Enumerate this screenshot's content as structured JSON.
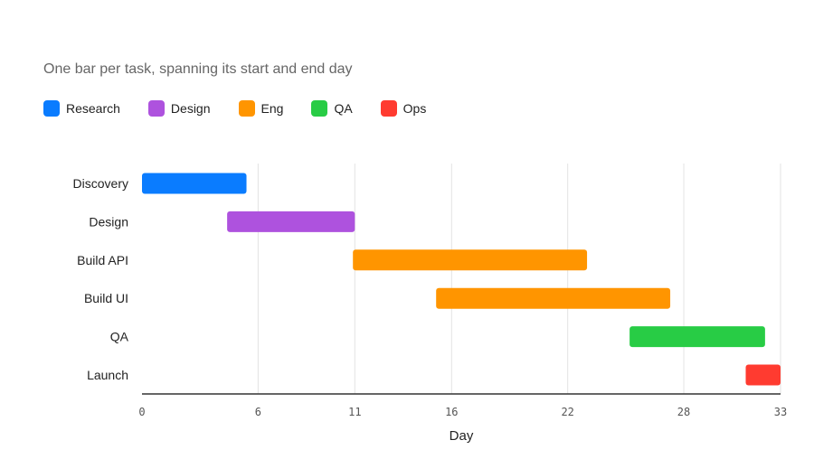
{
  "subtitle": "One bar per task, spanning its start and end day",
  "chart_data": {
    "type": "bar",
    "orientation": "horizontal-range",
    "title": "",
    "subtitle": "One bar per task, spanning its start and end day",
    "xlabel": "Day",
    "ylabel": "",
    "xlim": [
      0,
      33
    ],
    "xticks": [
      0,
      6,
      11,
      16,
      22,
      28,
      33
    ],
    "grid": true,
    "legend_position": "top-left",
    "legend": [
      {
        "name": "Research",
        "color": "#0a7cff"
      },
      {
        "name": "Design",
        "color": "#ae52de"
      },
      {
        "name": "Eng",
        "color": "#ff9500"
      },
      {
        "name": "QA",
        "color": "#28cc45"
      },
      {
        "name": "Ops",
        "color": "#ff3b30"
      }
    ],
    "categories": [
      "Discovery",
      "Design",
      "Build API",
      "Build UI",
      "QA",
      "Launch"
    ],
    "tasks": [
      {
        "task": "Discovery",
        "group": "Research",
        "start": 0,
        "end": 5.4
      },
      {
        "task": "Design",
        "group": "Design",
        "start": 4.4,
        "end": 11
      },
      {
        "task": "Build API",
        "group": "Eng",
        "start": 10.9,
        "end": 23
      },
      {
        "task": "Build UI",
        "group": "Eng",
        "start": 15.2,
        "end": 27.3
      },
      {
        "task": "QA",
        "group": "QA",
        "start": 25.2,
        "end": 32.2
      },
      {
        "task": "Launch",
        "group": "Ops",
        "start": 31.2,
        "end": 34.2
      }
    ]
  }
}
